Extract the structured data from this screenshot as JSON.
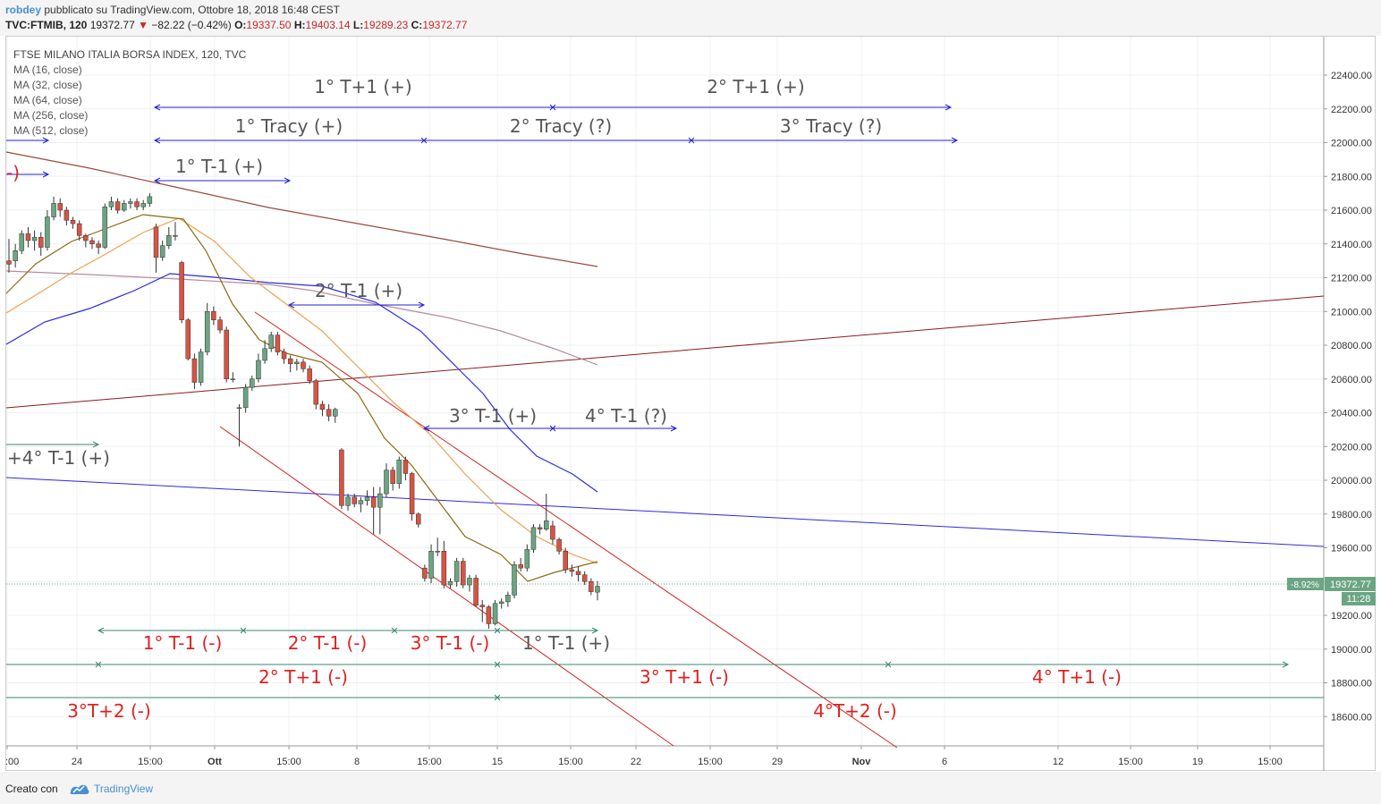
{
  "header": {
    "author": "robdey",
    "published": "pubblicato su TradingView.com, Ottobre 18, 2018 16:48 CEST",
    "symbol": "TVC:FTMIB, 120",
    "last": "19372.77",
    "change": "−82.22 (−0.42%)",
    "o_label": "O:",
    "o_value": "19337.50",
    "h_label": "H:",
    "h_value": "19403.14",
    "l_label": "L:",
    "l_value": "19289.23",
    "c_label": "C:",
    "c_value": "19372.77"
  },
  "legend": {
    "title": "FTSE MILANO ITALIA BORSA INDEX, 120, TVC",
    "items": [
      "MA (16, close)",
      "MA (32, close)",
      "MA (64, close)",
      "MA (256, close)",
      "MA (512, close)"
    ]
  },
  "footer": {
    "created": "Creato con",
    "brand": "TradingView"
  },
  "colors": {
    "up": "#6ba583",
    "down": "#d75442",
    "ma16": "#8b6914",
    "ma32": "#f0a050",
    "ma64": "#2b2bdf",
    "ma256": "#b58aa0",
    "ma512": "#9a4a3a",
    "trend_red": "#8b1a1a",
    "trend_blue": "#2b2bdf",
    "channel": "#d42020",
    "arrow_blue": "#2020d0",
    "arrow_green": "#3a8a6a",
    "label_red": "#e02020",
    "label_gray": "#555555"
  },
  "chart_data": {
    "type": "candlestick",
    "title": "FTSE MILANO ITALIA BORSA INDEX, 120, TVC",
    "y_ticks": [
      22400,
      22200,
      22000,
      21800,
      21600,
      21400,
      21200,
      21000,
      20800,
      20600,
      20400,
      20200,
      20000,
      19800,
      19600,
      19400,
      19200,
      19000,
      18800,
      18600
    ],
    "y_tick_labels": [
      "22400.00",
      "22200.00",
      "22000.00",
      "21800.00",
      "21600.00",
      "21400.00",
      "21200.00",
      "21000.00",
      "20800.00",
      "20600.00",
      "20400.00",
      "20200.00",
      "20000.00",
      "19800.00",
      "19600.00",
      "19400.00",
      "19200.00",
      "19000.00",
      "18800.00",
      "18600.00"
    ],
    "x_tick_labels": [
      ":00",
      "24",
      "15:00",
      "Ott",
      "15:00",
      "8",
      "15:00",
      "15",
      "15:00",
      "22",
      "15:00",
      "29",
      "Nov",
      "6",
      "12",
      "15:00",
      "19",
      "15:00"
    ],
    "last_price": "19372.77",
    "last_pct": "-8.92%",
    "countdown": "11:28",
    "candles": [
      [
        21300,
        21280,
        21430,
        21230
      ],
      [
        21300,
        21360,
        21400,
        21260
      ],
      [
        21360,
        21460,
        21480,
        21340
      ],
      [
        21460,
        21420,
        21500,
        21380
      ],
      [
        21420,
        21440,
        21480,
        21360
      ],
      [
        21440,
        21380,
        21470,
        21330
      ],
      [
        21380,
        21560,
        21600,
        21360
      ],
      [
        21560,
        21640,
        21680,
        21540
      ],
      [
        21640,
        21600,
        21670,
        21560
      ],
      [
        21600,
        21540,
        21620,
        21510
      ],
      [
        21540,
        21520,
        21560,
        21490
      ],
      [
        21520,
        21450,
        21540,
        21420
      ],
      [
        21450,
        21420,
        21460,
        21380
      ],
      [
        21420,
        21400,
        21440,
        21370
      ],
      [
        21400,
        21380,
        21420,
        21340
      ],
      [
        21380,
        21620,
        21640,
        21370
      ],
      [
        21620,
        21650,
        21680,
        21600
      ],
      [
        21650,
        21600,
        21670,
        21580
      ],
      [
        21600,
        21640,
        21660,
        21590
      ],
      [
        21640,
        21650,
        21670,
        21610
      ],
      [
        21650,
        21620,
        21670,
        21600
      ],
      [
        21620,
        21640,
        21660,
        21600
      ],
      [
        21640,
        21680,
        21700,
        21620
      ],
      [
        21500,
        21320,
        21520,
        21230
      ],
      [
        21320,
        21390,
        21420,
        21300
      ],
      [
        21390,
        21450,
        21500,
        21370
      ],
      [
        21450,
        21450,
        21530,
        21420
      ],
      [
        21290,
        20950,
        21300,
        20930
      ],
      [
        20950,
        20720,
        20960,
        20710
      ],
      [
        20720,
        20580,
        20750,
        20540
      ],
      [
        20580,
        20760,
        20780,
        20560
      ],
      [
        20760,
        21000,
        21050,
        20740
      ],
      [
        21000,
        20950,
        21030,
        20920
      ],
      [
        20950,
        20890,
        20970,
        20870
      ],
      [
        20890,
        20600,
        20910,
        20580
      ],
      [
        20600,
        20600,
        20640,
        20580
      ],
      [
        20430,
        20430,
        20450,
        20200
      ],
      [
        20430,
        20550,
        20570,
        20400
      ],
      [
        20550,
        20600,
        20620,
        20530
      ],
      [
        20600,
        20710,
        20750,
        20580
      ],
      [
        20710,
        20780,
        20830,
        20690
      ],
      [
        20780,
        20860,
        20880,
        20760
      ],
      [
        20860,
        20760,
        20880,
        20740
      ],
      [
        20760,
        20720,
        20780,
        20690
      ],
      [
        20720,
        20690,
        20740,
        20640
      ],
      [
        20690,
        20700,
        20720,
        20650
      ],
      [
        20700,
        20660,
        20720,
        20640
      ],
      [
        20660,
        20590,
        20680,
        20570
      ],
      [
        20590,
        20450,
        20600,
        20420
      ],
      [
        20450,
        20420,
        20470,
        20380
      ],
      [
        20420,
        20380,
        20450,
        20350
      ],
      [
        20380,
        20420,
        20430,
        20340
      ],
      [
        20180,
        19850,
        20190,
        19830
      ],
      [
        19850,
        19900,
        19920,
        19820
      ],
      [
        19900,
        19860,
        19920,
        19840
      ],
      [
        19860,
        19880,
        19900,
        19810
      ],
      [
        19880,
        19900,
        19940,
        19850
      ],
      [
        19900,
        19840,
        19960,
        19680
      ],
      [
        19840,
        19920,
        19960,
        19680
      ],
      [
        19920,
        20060,
        20100,
        19900
      ],
      [
        20060,
        19980,
        20080,
        19940
      ],
      [
        19980,
        20120,
        20140,
        19950
      ],
      [
        20120,
        20040,
        20140,
        20000
      ],
      [
        20040,
        19800,
        20050,
        19760
      ],
      [
        19800,
        19740,
        19810,
        19720
      ],
      [
        19480,
        19420,
        19500,
        19400
      ],
      [
        19420,
        19580,
        19620,
        19390
      ],
      [
        19580,
        19580,
        19660,
        19550
      ],
      [
        19580,
        19380,
        19640,
        19360
      ],
      [
        19380,
        19400,
        19420,
        19360
      ],
      [
        19400,
        19520,
        19540,
        19370
      ],
      [
        19520,
        19380,
        19540,
        19360
      ],
      [
        19380,
        19420,
        19440,
        19340
      ],
      [
        19420,
        19260,
        19440,
        19250
      ],
      [
        19260,
        19250,
        19290,
        19160
      ],
      [
        19250,
        19150,
        19260,
        19120
      ],
      [
        19150,
        19270,
        19290,
        19140
      ],
      [
        19270,
        19280,
        19300,
        19240
      ],
      [
        19280,
        19320,
        19340,
        19250
      ],
      [
        19320,
        19500,
        19520,
        19300
      ],
      [
        19500,
        19480,
        19540,
        19460
      ],
      [
        19480,
        19590,
        19620,
        19460
      ],
      [
        19590,
        19720,
        19740,
        19570
      ],
      [
        19720,
        19710,
        19740,
        19680
      ],
      [
        19710,
        19760,
        19920,
        19700
      ],
      [
        19730,
        19650,
        19760,
        19620
      ],
      [
        19650,
        19580,
        19660,
        19560
      ],
      [
        19580,
        19470,
        19600,
        19450
      ],
      [
        19470,
        19460,
        19500,
        19430
      ],
      [
        19460,
        19440,
        19490,
        19400
      ],
      [
        19440,
        19400,
        19460,
        19380
      ],
      [
        19400,
        19340,
        19420,
        19320
      ],
      [
        19337,
        19372,
        19403,
        19289
      ]
    ],
    "annotations": [
      {
        "text": "1° T+1 (+)",
        "color": "gray"
      },
      {
        "text": "2° T+1 (+)",
        "color": "gray"
      },
      {
        "text": "1° Tracy (+)",
        "color": "gray"
      },
      {
        "text": "2° Tracy (?)",
        "color": "gray"
      },
      {
        "text": "3° Tracy (?)",
        "color": "gray"
      },
      {
        "text": "1° T-1 (+)",
        "color": "gray"
      },
      {
        "text": "2° T-1 (+)",
        "color": "gray"
      },
      {
        "text": "3° T-1 (+)",
        "color": "gray"
      },
      {
        "text": "4° T-1 (?)",
        "color": "gray"
      },
      {
        "text": "+4° T-1 (+)",
        "color": "gray"
      },
      {
        "text": "-)",
        "color": "red"
      },
      {
        "text": "1° T-1 (-)",
        "color": "red"
      },
      {
        "text": "2° T-1 (-)",
        "color": "red"
      },
      {
        "text": "3° T-1 (-)",
        "color": "red"
      },
      {
        "text": "1° T-1 (+)",
        "color": "gray"
      },
      {
        "text": "2° T+1 (-)",
        "color": "red"
      },
      {
        "text": "3° T+1 (-)",
        "color": "red"
      },
      {
        "text": "4° T+1 (-)",
        "color": "red"
      },
      {
        "text": "3°T+2 (-)",
        "color": "red"
      },
      {
        "text": "4°T+2 (-)",
        "color": "red"
      }
    ]
  }
}
